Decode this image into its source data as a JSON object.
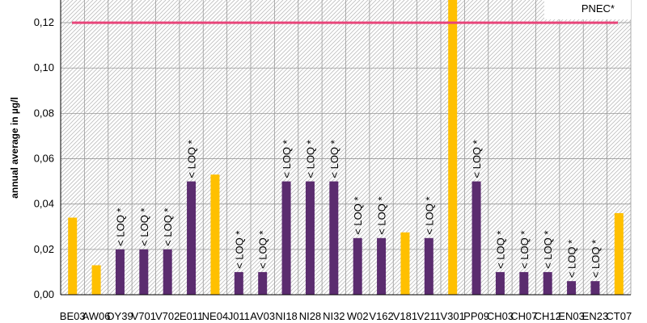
{
  "chart_data": {
    "type": "bar",
    "title": "",
    "xlabel": "",
    "ylabel": "annual average in µg/l",
    "ylim": [
      0,
      0.13
    ],
    "yticks": [
      0.0,
      0.02,
      0.04,
      0.06,
      0.08,
      0.1,
      0.12
    ],
    "ytick_labels": [
      "0,00",
      "0,02",
      "0,04",
      "0,06",
      "0,08",
      "0,10",
      "0,12"
    ],
    "grid": true,
    "colors": {
      "measured": "#FFC000",
      "loq": "#5B2C6F",
      "pnec": "#E8457A",
      "grid": "#999999"
    },
    "categories": [
      "BE03",
      "AW06",
      "DY39",
      "V701",
      "V702",
      "E011",
      "NE04",
      "J011",
      "AV03",
      "NI18",
      "NI28",
      "NI32",
      "W02",
      "V162",
      "V181",
      "V211",
      "V301",
      "PP09",
      "CH03",
      "CH07",
      "CH12",
      "EN03",
      "EN23",
      "CT07"
    ],
    "values": [
      0.034,
      0.013,
      0.02,
      0.02,
      0.02,
      0.05,
      0.053,
      0.01,
      0.01,
      0.05,
      0.05,
      0.05,
      0.025,
      0.025,
      0.0275,
      0.025,
      0.13,
      0.05,
      0.01,
      0.01,
      0.01,
      0.006,
      0.006,
      0.036
    ],
    "below_loq": [
      false,
      false,
      true,
      true,
      true,
      true,
      false,
      true,
      true,
      true,
      true,
      true,
      true,
      true,
      false,
      true,
      false,
      true,
      true,
      true,
      true,
      true,
      true,
      false
    ],
    "loq_label": "< LOQ *",
    "reference_line": {
      "name": "PNEC*",
      "value": 0.12
    },
    "legend": {
      "entries": [
        "PNEC*"
      ],
      "placement": "top-right"
    }
  }
}
